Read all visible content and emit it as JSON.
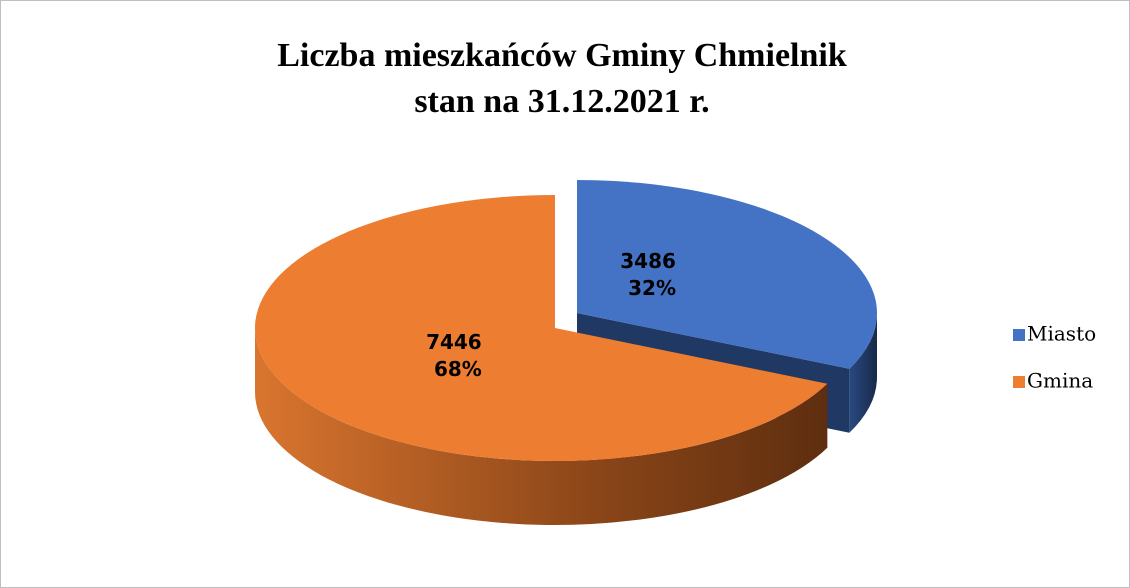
{
  "chart_data": {
    "type": "pie",
    "title": [
      "Liczba mieszkańców Gminy Chmielnik",
      "stan na 31.12.2021 r."
    ],
    "categories": [
      "Miasto",
      "Gmina"
    ],
    "values": [
      3486,
      7446
    ],
    "percent_labels": [
      "32%",
      "68%"
    ],
    "colors": [
      "#4472c4",
      "#ed7d31"
    ],
    "side_colors": [
      "#1f3864",
      "#8a4518"
    ],
    "exploded": [
      true,
      false
    ],
    "legend": "right"
  }
}
